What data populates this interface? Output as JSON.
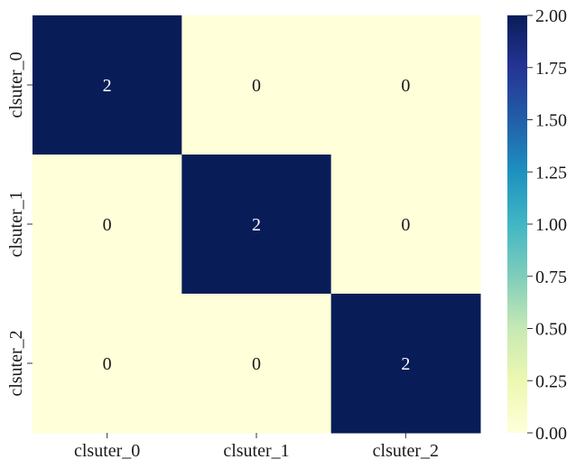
{
  "chart_data": {
    "type": "heatmap",
    "title": "",
    "xlabel": "",
    "ylabel": "",
    "x_categories": [
      "clsuter_0",
      "clsuter_1",
      "clsuter_2"
    ],
    "y_categories": [
      "clsuter_0",
      "clsuter_1",
      "clsuter_2"
    ],
    "values": [
      [
        2,
        0,
        0
      ],
      [
        0,
        2,
        0
      ],
      [
        0,
        0,
        2
      ]
    ],
    "colorbar": {
      "min": 0,
      "max": 2,
      "ticks": [
        "0.00",
        "0.25",
        "0.50",
        "0.75",
        "1.00",
        "1.25",
        "1.50",
        "1.75",
        "2.00"
      ],
      "colormap": "YlGnBu",
      "colors": [
        "#ffffd9",
        "#edf8b1",
        "#c7e9b4",
        "#7fcdbb",
        "#41b6c4",
        "#1d91c0",
        "#225ea8",
        "#253494",
        "#081d58"
      ]
    },
    "annotations": true,
    "annotation_text_dark": "#1a1a1a",
    "annotation_text_light": "#ffffff"
  }
}
